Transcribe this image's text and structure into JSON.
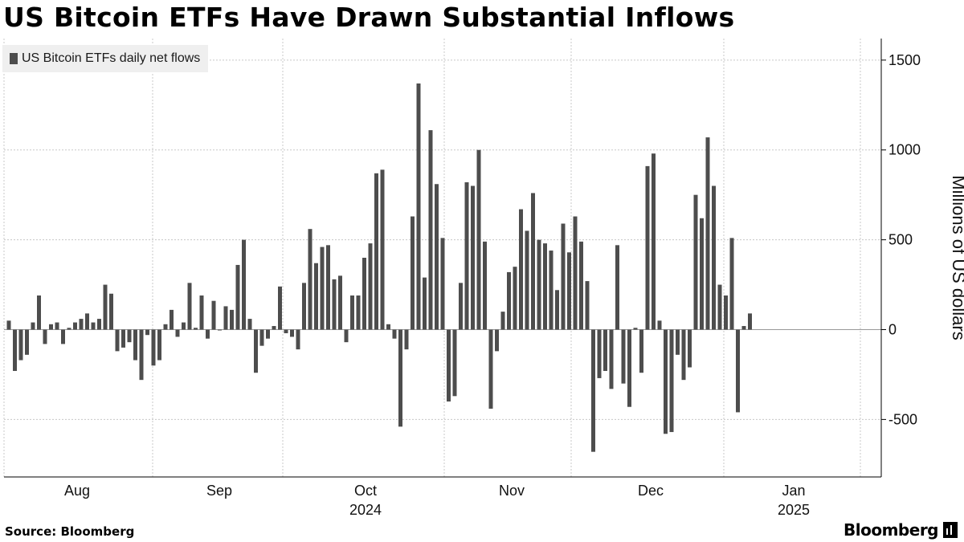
{
  "title": "US Bitcoin ETFs Have Drawn Substantial Inflows",
  "source_label": "Source: Bloomberg",
  "brand": "Bloomberg",
  "colors": {
    "bar": "#4d4d4d",
    "grid": "#c8c8c8",
    "legend_bg": "#efefef"
  },
  "chart_data": {
    "type": "bar",
    "title": "US Bitcoin ETFs Have Drawn Substantial Inflows",
    "legend": [
      "US Bitcoin ETFs daily net flows"
    ],
    "ylabel": "Millions of US dollars",
    "ylim": [
      -820,
      1620
    ],
    "yticks": [
      -500,
      0,
      500,
      1000,
      1500
    ],
    "ytick_labels": [
      "-500",
      "0",
      "500",
      "1000",
      "1500"
    ],
    "xtick_labels": [
      {
        "label": "Aug",
        "sub": ""
      },
      {
        "label": "Sep",
        "sub": ""
      },
      {
        "label": "Oct",
        "sub": "2024"
      },
      {
        "label": "Nov",
        "sub": ""
      },
      {
        "label": "Dec",
        "sub": ""
      },
      {
        "label": "Jan",
        "sub": "2025"
      }
    ],
    "series": [
      {
        "name": "US Bitcoin ETFs daily net flows",
        "values": [
          50,
          -230,
          -170,
          -140,
          40,
          190,
          -80,
          30,
          40,
          -80,
          10,
          40,
          60,
          90,
          40,
          60,
          250,
          200,
          -120,
          -100,
          -70,
          -170,
          -280,
          -30,
          -200,
          -170,
          30,
          110,
          -40,
          40,
          260,
          10,
          190,
          -50,
          160,
          0,
          130,
          110,
          360,
          500,
          60,
          -240,
          -90,
          -50,
          20,
          240,
          -20,
          -40,
          -110,
          260,
          560,
          370,
          460,
          470,
          280,
          300,
          -70,
          190,
          190,
          400,
          480,
          870,
          890,
          30,
          -50,
          -540,
          -110,
          630,
          1370,
          290,
          1110,
          810,
          510,
          -400,
          -370,
          260,
          820,
          800,
          1000,
          490,
          -440,
          -120,
          100,
          320,
          350,
          670,
          550,
          760,
          500,
          480,
          440,
          220,
          590,
          430,
          630,
          490,
          270,
          -680,
          -270,
          -230,
          -330,
          470,
          -300,
          -430,
          10,
          -240,
          910,
          980,
          50,
          -580,
          -570,
          -140,
          -280,
          -210,
          750,
          620,
          1070,
          800,
          250,
          190,
          510,
          -460,
          20,
          90
        ]
      }
    ]
  }
}
